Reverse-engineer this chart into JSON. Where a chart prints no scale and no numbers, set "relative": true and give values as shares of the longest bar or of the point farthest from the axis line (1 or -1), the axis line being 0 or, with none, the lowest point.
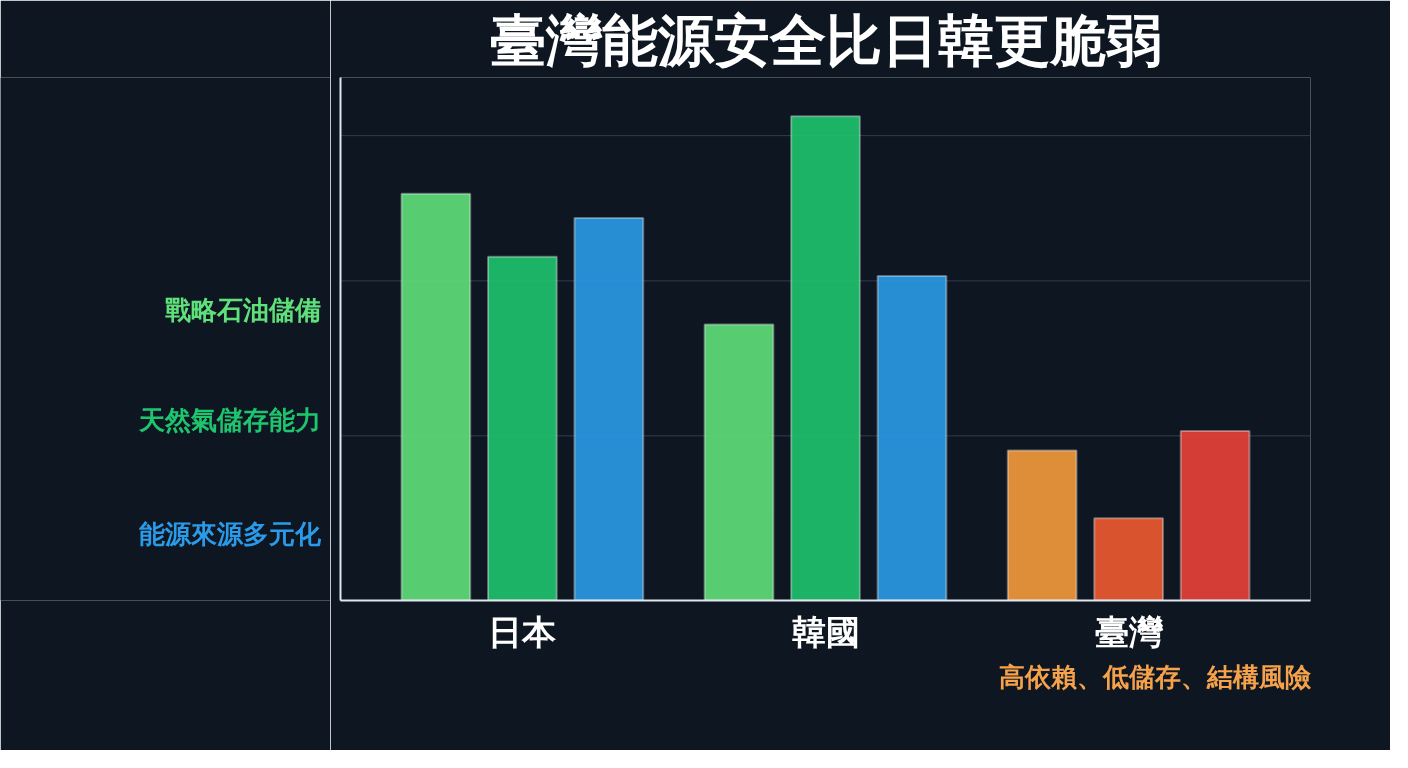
{
  "chart_data": {
    "type": "bar",
    "title": "臺灣能源安全比日韓更脆弱",
    "relative": true,
    "categories": [
      "日本",
      "韓國",
      "臺灣"
    ],
    "series": [
      {
        "name": "戰略石油儲備",
        "color": "#5fe07a",
        "colors": [
          "#5fe07a",
          "#5fe07a",
          "#f59a3c"
        ],
        "values": [
          0.84,
          0.57,
          0.31
        ]
      },
      {
        "name": "天然氣儲存能力",
        "color": "#1fc46e",
        "colors": [
          "#1fc46e",
          "#1fc46e",
          "#ee5a30"
        ],
        "values": [
          0.71,
          1.0,
          0.17
        ]
      },
      {
        "name": "能源來源多元化",
        "color": "#2a9be8",
        "colors": [
          "#2a9be8",
          "#2a9be8",
          "#ea4038"
        ],
        "values": [
          0.79,
          0.67,
          0.35
        ]
      }
    ],
    "ref_lines": [
      {
        "axis": "y",
        "value": 0.34,
        "color": "#2e3f4d"
      },
      {
        "axis": "y",
        "value": 0.66,
        "color": "#2e3f4d"
      },
      {
        "axis": "y",
        "value": 0.96,
        "color": "#2e3f4d"
      }
    ],
    "annotations": [
      "高依賴、低儲存、結構風險"
    ]
  }
}
